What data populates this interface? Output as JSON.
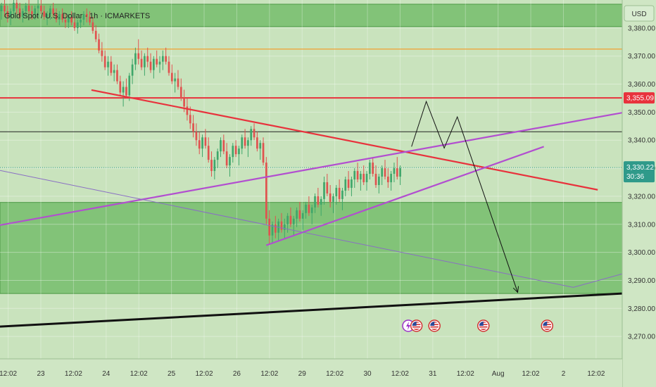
{
  "window": {
    "title": "Gold Spot / U.S. Dollar · 1h · ICMARKETS",
    "currency_button": "USD"
  },
  "colors": {
    "background": "#c9e3bd",
    "zone_fill": "#6ab862",
    "zone_border": "#4d9a46",
    "candle_up": "#3fa66a",
    "candle_down": "#e0524f",
    "resistance_red": "#e8323c",
    "wedge_purple": "#b24ed0",
    "thin_purple": "#8a6fc4",
    "orange_line": "#f0a030",
    "trend_black": "#111111",
    "price_tag": "#2f9a8a"
  },
  "chart_data": {
    "type": "candlestick",
    "title": "Gold Spot / U.S. Dollar · 1h · ICMARKETS",
    "currency": "USD",
    "y_ticks": [
      "3,380.00",
      "3,370.00",
      "3,360.00",
      "3,350.00",
      "3,340.00",
      "3,330.00",
      "3,320.00",
      "3,310.00",
      "3,300.00",
      "3,290.00",
      "3,280.00",
      "3,270.00"
    ],
    "y_tick_values": [
      3380,
      3370,
      3360,
      3350,
      3340,
      3330,
      3320,
      3310,
      3300,
      3290,
      3280,
      3270
    ],
    "ylim": [
      3262,
      3390
    ],
    "x_ticks": [
      "12:02",
      "23",
      "12:02",
      "24",
      "12:02",
      "25",
      "12:02",
      "26",
      "12:02",
      "29",
      "12:02",
      "30",
      "12:02",
      "31",
      "12:02",
      "Aug",
      "12:02",
      "2",
      "12:02"
    ],
    "x_tick_index": [
      0,
      2,
      4,
      6,
      8,
      10,
      12,
      14,
      16,
      18,
      20,
      22,
      24,
      26,
      28,
      30,
      32,
      34,
      36
    ],
    "xlim": [
      -0.5,
      37.6
    ],
    "price_labels": [
      {
        "text": "3,355.09",
        "value": 3355.09,
        "kind": "red"
      },
      {
        "text": "3,330.22",
        "value": 3330.22,
        "kind": "current",
        "countdown": "30:36"
      }
    ],
    "horizontal_lines": [
      {
        "value": 3372.5,
        "color": "orange"
      },
      {
        "value": 3355.09,
        "color": "red"
      },
      {
        "value": 3343,
        "color": "black"
      }
    ],
    "zones": [
      {
        "from": 3380.5,
        "to": 3388.5
      },
      {
        "from": 3285.3,
        "to": 3317.8
      }
    ],
    "trendlines": [
      {
        "name": "red-descending",
        "from": [
          5.1,
          3357.9
        ],
        "to": [
          36.1,
          3322.3
        ]
      },
      {
        "name": "wedge-upper",
        "from": [
          -0.5,
          3309.7
        ],
        "to": [
          37.6,
          3349.8
        ]
      },
      {
        "name": "wedge-lower",
        "from": [
          15.8,
          3302.5
        ],
        "to": [
          32.8,
          3337.7
        ]
      },
      {
        "name": "thin-purple",
        "from": [
          -0.5,
          3329.2
        ],
        "to": [
          34.6,
          3287.5
        ]
      },
      {
        "name": "thin-purple-2",
        "from": [
          34.6,
          3287.5
        ],
        "to": [
          37.6,
          3292.3
        ]
      },
      {
        "name": "black-support",
        "from": [
          -0.5,
          3273.5
        ],
        "to": [
          37.6,
          3285.3
        ]
      }
    ],
    "projection": [
      [
        24.7,
        3337.7
      ],
      [
        25.6,
        3353.8
      ],
      [
        26.7,
        3337.2
      ],
      [
        27.5,
        3348.3
      ],
      [
        31.2,
        3285.7
      ]
    ],
    "events": [
      {
        "icon": "lightning-icon",
        "x": 24.5
      },
      {
        "icon": "us-flag-icon",
        "x": 25.0
      },
      {
        "icon": "us-flag-icon",
        "x": 26.1
      },
      {
        "icon": "us-flag-icon",
        "x": 29.1
      },
      {
        "icon": "us-flag-icon",
        "x": 33.0
      }
    ],
    "candles": [
      [
        3386,
        3389,
        3383,
        3388
      ],
      [
        3388,
        3390,
        3384,
        3386
      ],
      [
        3386,
        3388,
        3382,
        3384
      ],
      [
        3384,
        3387,
        3381,
        3386
      ],
      [
        3386,
        3390,
        3384,
        3389
      ],
      [
        3389,
        3391,
        3385,
        3387
      ],
      [
        3387,
        3389,
        3383,
        3384
      ],
      [
        3384,
        3387,
        3382,
        3386
      ],
      [
        3386,
        3389,
        3384,
        3388
      ],
      [
        3388,
        3390,
        3385,
        3386
      ],
      [
        3386,
        3388,
        3383,
        3385
      ],
      [
        3385,
        3388,
        3383,
        3387
      ],
      [
        3387,
        3390,
        3384,
        3388
      ],
      [
        3388,
        3390,
        3385,
        3386
      ],
      [
        3386,
        3388,
        3383,
        3384
      ],
      [
        3384,
        3386,
        3381,
        3385
      ],
      [
        3385,
        3388,
        3383,
        3387
      ],
      [
        3387,
        3389,
        3384,
        3385
      ],
      [
        3385,
        3387,
        3382,
        3383
      ],
      [
        3383,
        3386,
        3381,
        3385
      ],
      [
        3385,
        3387,
        3382,
        3383
      ],
      [
        3383,
        3385,
        3380,
        3382
      ],
      [
        3382,
        3385,
        3380,
        3384
      ],
      [
        3384,
        3386,
        3381,
        3382
      ],
      [
        3382,
        3384,
        3379,
        3380
      ],
      [
        3380,
        3383,
        3378,
        3382
      ],
      [
        3382,
        3384,
        3380,
        3383
      ],
      [
        3383,
        3386,
        3381,
        3385
      ],
      [
        3385,
        3387,
        3382,
        3384
      ],
      [
        3384,
        3386,
        3381,
        3382
      ],
      [
        3382,
        3384,
        3378,
        3379
      ],
      [
        3379,
        3381,
        3375,
        3376
      ],
      [
        3376,
        3378,
        3371,
        3372
      ],
      [
        3372,
        3375,
        3368,
        3370
      ],
      [
        3370,
        3372,
        3365,
        3366
      ],
      [
        3366,
        3370,
        3363,
        3368
      ],
      [
        3368,
        3370,
        3363,
        3364
      ],
      [
        3364,
        3367,
        3361,
        3365
      ],
      [
        3365,
        3367,
        3360,
        3361
      ],
      [
        3361,
        3363,
        3356,
        3357
      ],
      [
        3357,
        3361,
        3352,
        3359
      ],
      [
        3359,
        3362,
        3355,
        3356
      ],
      [
        3356,
        3364,
        3354,
        3363
      ],
      [
        3363,
        3369,
        3360,
        3367
      ],
      [
        3367,
        3373,
        3365,
        3371
      ],
      [
        3371,
        3376,
        3367,
        3369
      ],
      [
        3369,
        3372,
        3365,
        3366
      ],
      [
        3366,
        3371,
        3363,
        3370
      ],
      [
        3370,
        3373,
        3366,
        3368
      ],
      [
        3368,
        3371,
        3364,
        3365
      ],
      [
        3365,
        3370,
        3362,
        3369
      ],
      [
        3369,
        3372,
        3366,
        3367
      ],
      [
        3367,
        3370,
        3364,
        3368
      ],
      [
        3368,
        3372,
        3365,
        3370
      ],
      [
        3370,
        3373,
        3367,
        3368
      ],
      [
        3368,
        3370,
        3363,
        3364
      ],
      [
        3364,
        3367,
        3360,
        3361
      ],
      [
        3361,
        3364,
        3357,
        3362
      ],
      [
        3362,
        3365,
        3358,
        3359
      ],
      [
        3359,
        3362,
        3354,
        3355
      ],
      [
        3355,
        3358,
        3350,
        3352
      ],
      [
        3352,
        3355,
        3347,
        3349
      ],
      [
        3349,
        3352,
        3344,
        3346
      ],
      [
        3346,
        3349,
        3341,
        3343
      ],
      [
        3343,
        3346,
        3338,
        3340
      ],
      [
        3340,
        3343,
        3335,
        3337
      ],
      [
        3337,
        3342,
        3334,
        3341
      ],
      [
        3341,
        3344,
        3337,
        3338
      ],
      [
        3338,
        3341,
        3332,
        3333
      ],
      [
        3333,
        3336,
        3327,
        3329
      ],
      [
        3329,
        3334,
        3326,
        3333
      ],
      [
        3333,
        3337,
        3330,
        3336
      ],
      [
        3336,
        3341,
        3334,
        3340
      ],
      [
        3340,
        3342,
        3335,
        3336
      ],
      [
        3336,
        3339,
        3330,
        3331
      ],
      [
        3331,
        3335,
        3327,
        3334
      ],
      [
        3334,
        3339,
        3332,
        3338
      ],
      [
        3338,
        3340,
        3334,
        3335
      ],
      [
        3335,
        3338,
        3331,
        3337
      ],
      [
        3337,
        3342,
        3335,
        3341
      ],
      [
        3341,
        3344,
        3337,
        3338
      ],
      [
        3338,
        3341,
        3334,
        3340
      ],
      [
        3340,
        3345,
        3338,
        3344
      ],
      [
        3344,
        3346,
        3340,
        3341
      ],
      [
        3341,
        3343,
        3336,
        3337
      ],
      [
        3337,
        3340,
        3333,
        3339
      ],
      [
        3339,
        3341,
        3331,
        3332
      ],
      [
        3332,
        3334,
        3310,
        3312
      ],
      [
        3312,
        3315,
        3303,
        3306
      ],
      [
        3306,
        3311,
        3303,
        3310
      ],
      [
        3310,
        3313,
        3305,
        3307
      ],
      [
        3307,
        3312,
        3304,
        3311
      ],
      [
        3311,
        3314,
        3307,
        3308
      ],
      [
        3308,
        3312,
        3305,
        3310
      ],
      [
        3310,
        3314,
        3307,
        3313
      ],
      [
        3313,
        3316,
        3309,
        3310
      ],
      [
        3310,
        3313,
        3306,
        3312
      ],
      [
        3312,
        3316,
        3309,
        3315
      ],
      [
        3315,
        3318,
        3311,
        3312
      ],
      [
        3312,
        3315,
        3308,
        3314
      ],
      [
        3314,
        3318,
        3312,
        3317
      ],
      [
        3317,
        3320,
        3313,
        3314
      ],
      [
        3314,
        3317,
        3310,
        3316
      ],
      [
        3316,
        3321,
        3314,
        3320
      ],
      [
        3320,
        3323,
        3316,
        3317
      ],
      [
        3317,
        3320,
        3313,
        3319
      ],
      [
        3319,
        3327,
        3317,
        3325
      ],
      [
        3325,
        3328,
        3320,
        3321
      ],
      [
        3321,
        3324,
        3316,
        3318
      ],
      [
        3318,
        3321,
        3314,
        3320
      ],
      [
        3320,
        3324,
        3317,
        3323
      ],
      [
        3323,
        3326,
        3318,
        3319
      ],
      [
        3319,
        3323,
        3315,
        3322
      ],
      [
        3322,
        3327,
        3320,
        3326
      ],
      [
        3326,
        3329,
        3322,
        3323
      ],
      [
        3323,
        3327,
        3320,
        3326
      ],
      [
        3326,
        3330,
        3323,
        3329
      ],
      [
        3329,
        3332,
        3325,
        3326
      ],
      [
        3326,
        3329,
        3322,
        3328
      ],
      [
        3328,
        3331,
        3324,
        3325
      ],
      [
        3325,
        3329,
        3322,
        3328
      ],
      [
        3328,
        3333,
        3326,
        3332
      ],
      [
        3332,
        3334,
        3327,
        3328
      ],
      [
        3328,
        3331,
        3323,
        3324
      ],
      [
        3324,
        3328,
        3321,
        3327
      ],
      [
        3327,
        3331,
        3324,
        3330
      ],
      [
        3330,
        3333,
        3326,
        3327
      ],
      [
        3327,
        3330,
        3323,
        3325
      ],
      [
        3325,
        3329,
        3322,
        3328
      ],
      [
        3328,
        3332,
        3325,
        3330
      ],
      [
        3330,
        3334,
        3326,
        3327
      ],
      [
        3327,
        3331,
        3324,
        3330
      ]
    ]
  }
}
